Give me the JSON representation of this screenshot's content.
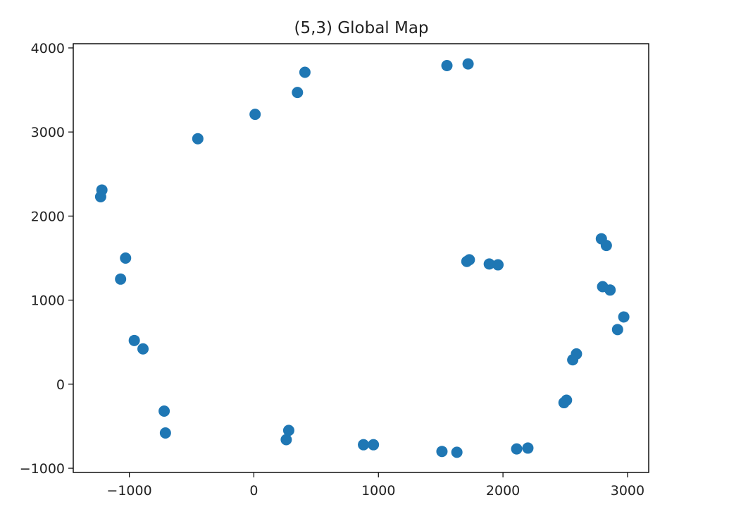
{
  "chart_data": {
    "type": "scatter",
    "title": "(5,3) Global Map",
    "xlabel": "",
    "ylabel": "",
    "xlim": [
      -1450,
      3170
    ],
    "ylim": [
      -1050,
      4050
    ],
    "xticks": [
      {
        "value": -1000,
        "label": "−1000"
      },
      {
        "value": 0,
        "label": "0"
      },
      {
        "value": 1000,
        "label": "1000"
      },
      {
        "value": 2000,
        "label": "2000"
      },
      {
        "value": 3000,
        "label": "3000"
      }
    ],
    "yticks": [
      {
        "value": -1000,
        "label": "−1000"
      },
      {
        "value": 0,
        "label": "0"
      },
      {
        "value": 1000,
        "label": "1000"
      },
      {
        "value": 2000,
        "label": "2000"
      },
      {
        "value": 3000,
        "label": "3000"
      },
      {
        "value": 4000,
        "label": "4000"
      }
    ],
    "grid": false,
    "marker_color": "#1f77b4",
    "series": [
      {
        "x": [
          -1220,
          -1230,
          -1030,
          -1070,
          -960,
          -890,
          -720,
          -710,
          -450,
          10,
          350,
          410,
          1550,
          1720,
          1710,
          1730,
          1890,
          1960,
          2790,
          2830,
          2800,
          2860,
          2970,
          2920,
          2590,
          2560,
          2510,
          2490,
          2200,
          2110,
          1630,
          1510,
          960,
          880,
          280,
          260
        ],
        "y": [
          2310,
          2230,
          1500,
          1250,
          520,
          420,
          -320,
          -580,
          2920,
          3210,
          3470,
          3710,
          3790,
          3810,
          1460,
          1480,
          1430,
          1420,
          1730,
          1650,
          1160,
          1120,
          800,
          650,
          360,
          290,
          -190,
          -220,
          -760,
          -770,
          -810,
          -800,
          -720,
          -720,
          -550,
          -660
        ]
      }
    ]
  }
}
